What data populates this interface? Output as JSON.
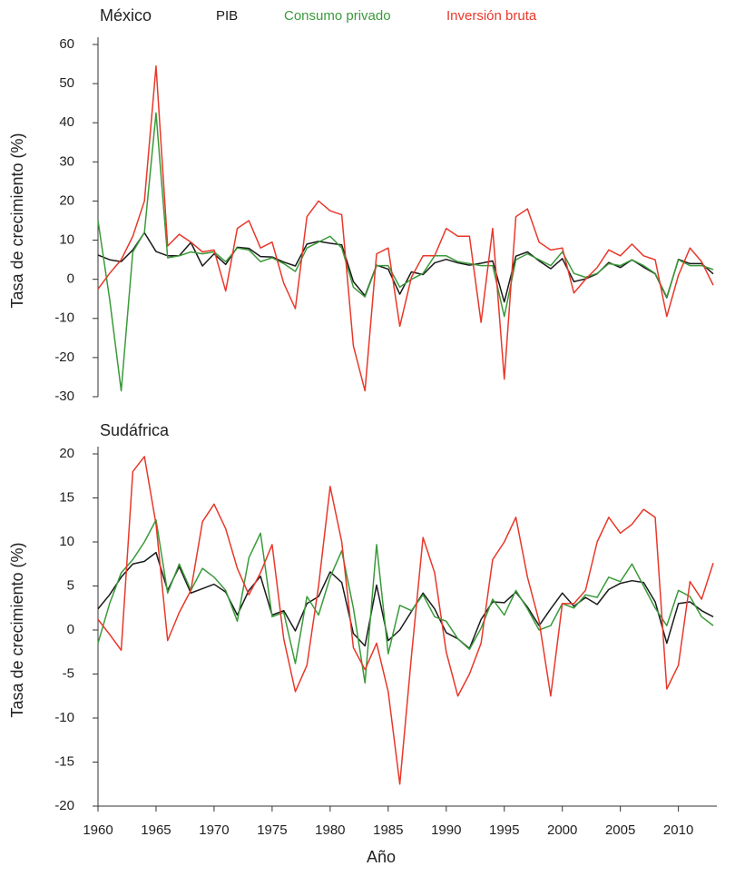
{
  "chart_data": [
    {
      "type": "line",
      "title": "México",
      "ylabel": "Tasa de crecimiento (%)",
      "legend": "top",
      "x": [
        1960,
        1961,
        1962,
        1963,
        1964,
        1965,
        1966,
        1967,
        1968,
        1969,
        1970,
        1971,
        1972,
        1973,
        1974,
        1975,
        1976,
        1977,
        1978,
        1979,
        1980,
        1981,
        1982,
        1983,
        1984,
        1985,
        1986,
        1987,
        1988,
        1989,
        1990,
        1991,
        1992,
        1993,
        1994,
        1995,
        1996,
        1997,
        1998,
        1999,
        2000,
        2001,
        2002,
        2003,
        2004,
        2005,
        2006,
        2007,
        2008,
        2009,
        2010,
        2011,
        2012,
        2013
      ],
      "xlim": [
        1960,
        2013
      ],
      "ylim": [
        -30,
        60
      ],
      "yticks": [
        -30,
        -20,
        -10,
        0,
        10,
        20,
        30,
        40,
        50,
        60
      ],
      "series": [
        {
          "name": "PIB",
          "color": "#1a1a1a",
          "values": [
            6.2,
            5.0,
            4.5,
            7.5,
            11.9,
            7.1,
            6.0,
            6.0,
            9.4,
            3.4,
            6.5,
            3.8,
            8.2,
            7.9,
            5.8,
            5.7,
            4.4,
            3.4,
            9.0,
            9.7,
            9.2,
            8.8,
            -0.6,
            -4.2,
            3.6,
            2.6,
            -3.8,
            1.9,
            1.2,
            4.2,
            5.1,
            4.2,
            3.6,
            4.1,
            4.7,
            -5.8,
            5.9,
            7.0,
            4.7,
            2.7,
            5.3,
            -0.6,
            0.1,
            1.4,
            4.3,
            3.0,
            5.0,
            3.1,
            1.4,
            -4.7,
            5.1,
            4.0,
            4.0,
            1.4
          ]
        },
        {
          "name": "Consumo privado",
          "color": "#3a9a3a",
          "values": [
            15,
            -5,
            -28.5,
            7,
            12,
            42.5,
            5.5,
            6,
            7,
            6.5,
            7,
            4.5,
            8,
            7.5,
            4.5,
            5.5,
            4,
            2,
            8,
            9.5,
            11,
            8,
            -2,
            -4.5,
            3.5,
            3.5,
            -2,
            0,
            1.5,
            6,
            6,
            4.5,
            4,
            3.5,
            3.5,
            -9.5,
            5,
            6.5,
            5,
            3.5,
            7,
            1.5,
            0.5,
            1.5,
            4,
            3.5,
            5,
            3.5,
            1.5,
            -4.5,
            5,
            3.5,
            3.5,
            2.5
          ]
        },
        {
          "name": "Inversión bruta",
          "color": "#e8382a",
          "values": [
            -2.5,
            1.5,
            5,
            11,
            20,
            54.5,
            8.5,
            11.5,
            9.5,
            7,
            7.5,
            -3,
            13,
            15,
            8,
            9.5,
            -1,
            -7.5,
            16,
            20,
            17.5,
            16.5,
            -17,
            -28.5,
            6.5,
            8,
            -12,
            0.5,
            6,
            6,
            13,
            11,
            11,
            -11,
            13,
            -25.5,
            16,
            18,
            9.5,
            7.5,
            8,
            -3.5,
            0,
            3,
            7.5,
            6,
            9,
            6,
            5,
            -9.5,
            1,
            8,
            4.5,
            -1.5
          ]
        }
      ]
    },
    {
      "type": "line",
      "title": "Sudáfrica",
      "ylabel": "Tasa de crecimiento (%)",
      "xlabel": "Año",
      "x": [
        1960,
        1961,
        1962,
        1963,
        1964,
        1965,
        1966,
        1967,
        1968,
        1969,
        1970,
        1971,
        1972,
        1973,
        1974,
        1975,
        1976,
        1977,
        1978,
        1979,
        1980,
        1981,
        1982,
        1983,
        1984,
        1985,
        1986,
        1987,
        1988,
        1989,
        1990,
        1991,
        1992,
        1993,
        1994,
        1995,
        1996,
        1997,
        1998,
        1999,
        2000,
        2001,
        2002,
        2003,
        2004,
        2005,
        2006,
        2007,
        2008,
        2009,
        2010,
        2011,
        2012,
        2013
      ],
      "xlim": [
        1960,
        2013
      ],
      "xticks": [
        1960,
        1965,
        1970,
        1975,
        1980,
        1985,
        1990,
        1995,
        2000,
        2005,
        2010
      ],
      "ylim": [
        -20,
        20
      ],
      "yticks": [
        -20,
        -15,
        -10,
        -5,
        0,
        5,
        10,
        15,
        20
      ],
      "series": [
        {
          "name": "PIB",
          "color": "#1a1a1a",
          "values": [
            2.4,
            4,
            6,
            7.5,
            7.8,
            8.8,
            4.5,
            7.2,
            4.2,
            4.7,
            5.2,
            4.3,
            1.7,
            4.5,
            6.1,
            1.7,
            2.2,
            -0.1,
            3,
            3.8,
            6.6,
            5.4,
            -0.4,
            -1.8,
            5.1,
            -1.2,
            0,
            2.1,
            4.2,
            2.4,
            -0.3,
            -1,
            -2.1,
            1.2,
            3.2,
            3.1,
            4.3,
            2.6,
            0.5,
            2.4,
            4.2,
            2.7,
            3.7,
            2.9,
            4.6,
            5.3,
            5.6,
            5.4,
            3.2,
            -1.5,
            3,
            3.2,
            2.2,
            1.5
          ]
        },
        {
          "name": "Consumo privado",
          "color": "#3a9a3a",
          "values": [
            -1.5,
            3,
            6.5,
            8,
            10,
            12.5,
            4.2,
            7.5,
            4.5,
            7,
            6,
            4.5,
            1,
            8.2,
            11,
            1.5,
            2,
            -3.8,
            3.8,
            1.7,
            6,
            9,
            2.5,
            -6,
            9.7,
            -2.7,
            2.8,
            2.2,
            4,
            1.5,
            1,
            -1,
            -2.2,
            0.2,
            3.5,
            1.7,
            4.5,
            2.4,
            0,
            0.5,
            3,
            2.5,
            4,
            3.7,
            6,
            5.5,
            7.5,
            5,
            2.5,
            0.5,
            4.5,
            3.8,
            1.5,
            0.5
          ]
        },
        {
          "name": "Inversión bruta",
          "color": "#e8382a",
          "values": [
            1.2,
            -0.5,
            -2.3,
            18,
            19.7,
            12,
            -1.2,
            2,
            4.5,
            12.3,
            14.3,
            11.5,
            7,
            4,
            6.5,
            9.7,
            -1,
            -7,
            -4,
            5,
            16.3,
            10,
            -2,
            -4.5,
            -1.5,
            -7,
            -17.5,
            -3,
            10.5,
            6.5,
            -2.5,
            -7.5,
            -5,
            -1.5,
            8,
            10,
            12.8,
            6,
            1,
            -7.5,
            3,
            3,
            4.5,
            10,
            12.8,
            11,
            12,
            13.7,
            12.8,
            -6.7,
            -4,
            5.5,
            3.5,
            7.6
          ]
        }
      ]
    }
  ]
}
